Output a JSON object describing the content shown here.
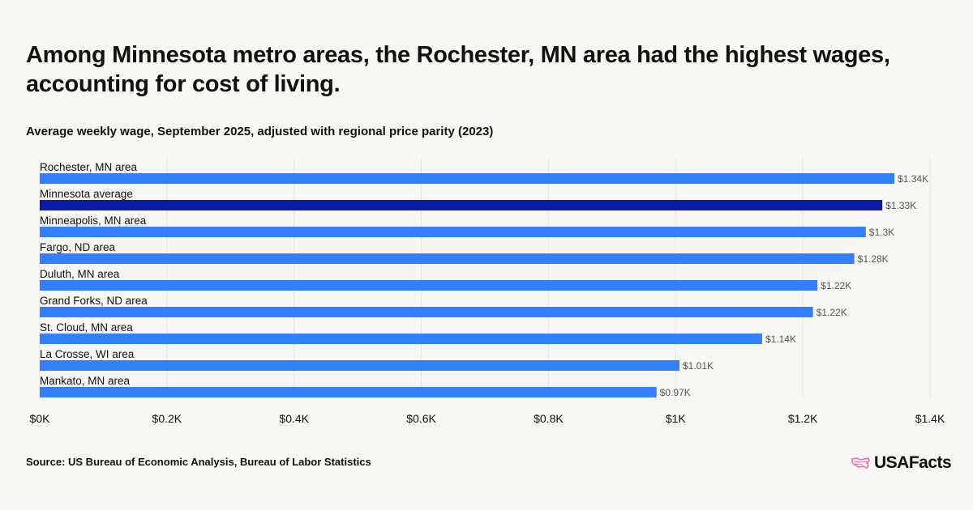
{
  "title": "Among Minnesota metro areas, the Rochester, MN area had the highest wages, accounting for cost of living.",
  "subtitle": "Average weekly wage, September 2025, adjusted with regional price parity (2023)",
  "source": "Source: US Bureau of Economic Analysis, Bureau of Labor Statistics",
  "logo": "USAFacts",
  "colors": {
    "bar": "#3380ff",
    "highlight": "#0b1aa8",
    "grid": "#e4e4e0"
  },
  "chart_data": {
    "type": "bar",
    "orientation": "horizontal",
    "title": "Average weekly wage, September 2025, adjusted with regional price parity (2023)",
    "xlabel": "",
    "ylabel": "",
    "xlim": [
      0,
      1400
    ],
    "grid": true,
    "categories": [
      "Rochester, MN area",
      "Minnesota average",
      "Minneapolis, MN area",
      "Fargo, ND area",
      "Duluth, MN area",
      "Grand Forks, ND area",
      "St. Cloud, MN area",
      "La Crosse, WI area",
      "Mankato, MN area"
    ],
    "values": [
      1344,
      1325,
      1299,
      1281,
      1223,
      1216,
      1136,
      1006,
      970
    ],
    "data_labels": [
      "$1.34K",
      "$1.33K",
      "$1.3K",
      "$1.28K",
      "$1.22K",
      "$1.22K",
      "$1.14K",
      "$1.01K",
      "$0.97K"
    ],
    "highlight": [
      false,
      true,
      false,
      false,
      false,
      false,
      false,
      false,
      false
    ],
    "ticks": [
      0,
      200,
      400,
      600,
      800,
      1000,
      1200,
      1400
    ],
    "tick_labels": [
      "$0K",
      "$0.2K",
      "$0.4K",
      "$0.6K",
      "$0.8K",
      "$1K",
      "$1.2K",
      "$1.4K"
    ]
  }
}
